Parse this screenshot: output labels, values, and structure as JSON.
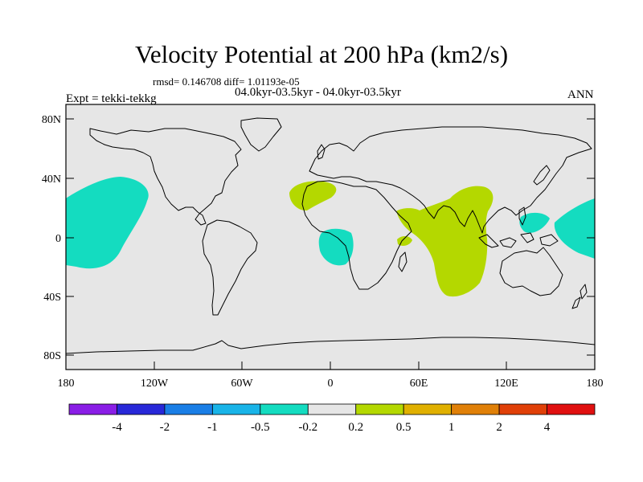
{
  "title": "Velocity Potential at 200 hPa (km2/s)",
  "stats": "rmsd= 0.146708 diff= 1.01193e-05",
  "subtitle": "04.0kyr-03.5kyr - 04.0kyr-03.5kyr",
  "expt": "Expt = tekki-tekkg",
  "season": "ANN",
  "y_axis": {
    "ticks": [
      "80N",
      "40N",
      "0",
      "40S",
      "80S"
    ]
  },
  "x_axis": {
    "ticks": [
      "180",
      "120W",
      "60W",
      "0",
      "60E",
      "120E",
      "180"
    ]
  },
  "colorbar": {
    "labels": [
      "-4",
      "-2",
      "-1",
      "-0.5",
      "-0.2",
      "0.2",
      "0.5",
      "1",
      "2",
      "4"
    ],
    "colors": [
      "#8a1ee6",
      "#2828d8",
      "#1a7ee6",
      "#19b4e8",
      "#14dcc0",
      "#e6e6e6",
      "#b4d800",
      "#e0b000",
      "#e08008",
      "#e04008",
      "#e01010"
    ]
  },
  "colors": {
    "neutral": "#e6e6e6",
    "negative_fill": "#14dcc0",
    "positive_fill": "#b4d800"
  }
}
